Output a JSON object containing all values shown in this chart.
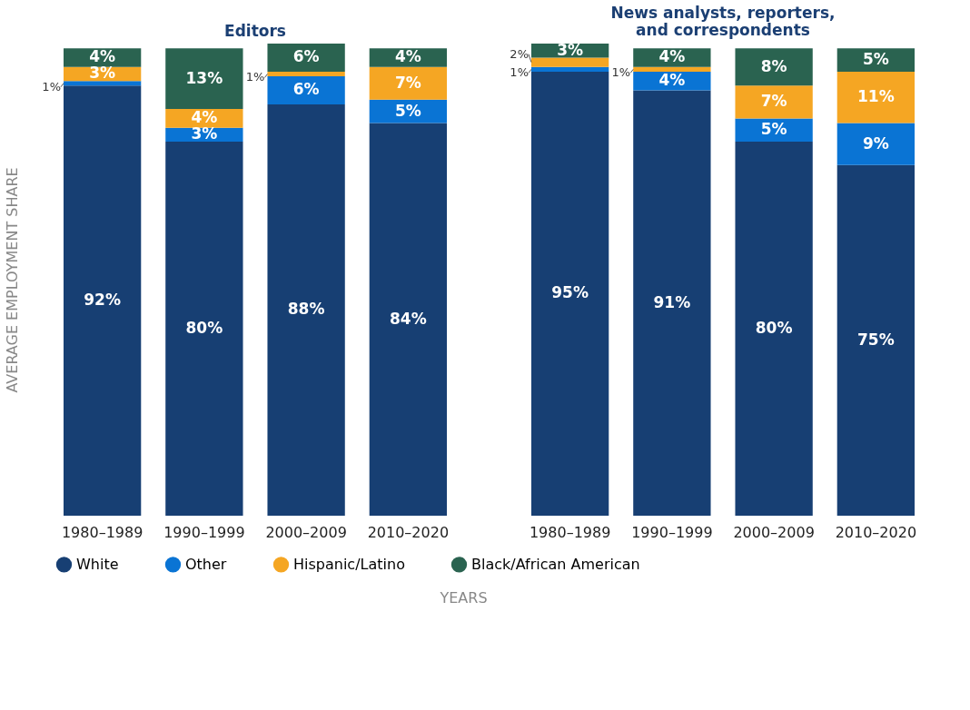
{
  "chart_data": [
    {
      "type": "bar",
      "title": "Editors",
      "xlabel": "YEARS",
      "ylabel": "AVERAGE EMPLOYMENT SHARE",
      "categories": [
        "1980–1989",
        "1990–1999",
        "2000–2009",
        "2010–2020"
      ],
      "stacked": true,
      "tick_labels": "x",
      "legend": "bottom",
      "series": [
        {
          "name": "White",
          "color": "#173f73",
          "values": [
            92,
            80,
            88,
            84
          ],
          "value_labels": [
            "92%",
            "80%",
            "88%",
            "84%"
          ]
        },
        {
          "name": "Other",
          "color": "#0a74d4",
          "values": [
            1,
            3,
            6,
            5
          ],
          "value_labels": [
            "1%",
            "3%",
            "6%",
            "5%"
          ]
        },
        {
          "name": "Hispanic/Latino",
          "color": "#f5a623",
          "values": [
            3,
            4,
            1,
            7
          ],
          "value_labels": [
            "3%",
            "4%",
            "1%",
            "7%"
          ]
        },
        {
          "name": "Black/African American",
          "color": "#2a6350",
          "values": [
            4,
            13,
            6,
            4
          ],
          "value_labels": [
            "4%",
            "13%",
            "6%",
            "4%"
          ]
        }
      ]
    },
    {
      "type": "bar",
      "title": "News analysts, reporters,\nand correspondents",
      "categories": [
        "1980–1989",
        "1990–1999",
        "2000–2009",
        "2010–2020"
      ],
      "stacked": true,
      "tick_labels": "x",
      "legend": "bottom",
      "series": [
        {
          "name": "White",
          "color": "#173f73",
          "values": [
            95,
            91,
            80,
            75
          ],
          "value_labels": [
            "95%",
            "91%",
            "80%",
            "75%"
          ]
        },
        {
          "name": "Other",
          "color": "#0a74d4",
          "values": [
            1,
            4,
            5,
            9
          ],
          "value_labels": [
            "1%",
            "4%",
            "5%",
            "9%"
          ]
        },
        {
          "name": "Hispanic/Latino",
          "color": "#f5a623",
          "values": [
            2,
            1,
            7,
            11
          ],
          "value_labels": [
            "2%",
            "1%",
            "7%",
            "11%"
          ]
        },
        {
          "name": "Black/African American",
          "color": "#2a6350",
          "values": [
            3,
            4,
            8,
            5
          ],
          "value_labels": [
            "3%",
            "4%",
            "8%",
            "5%"
          ]
        }
      ]
    }
  ]
}
